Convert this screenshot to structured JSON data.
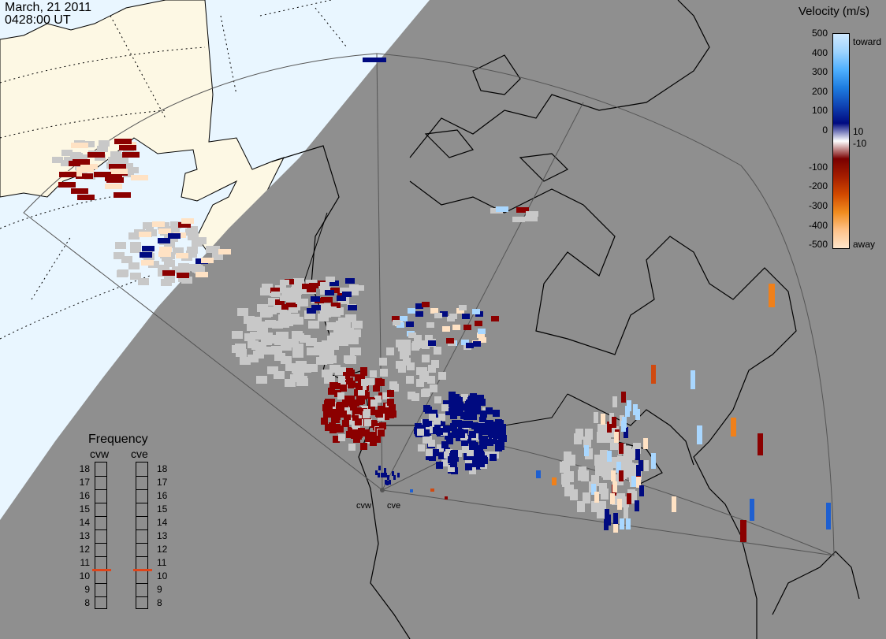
{
  "header": {
    "date": "March, 21 2011",
    "time": "0428:00 UT"
  },
  "colorbar": {
    "title": "Velocity (m/s)",
    "ticks": [
      "500",
      "400",
      "300",
      "200",
      "100",
      "10",
      "0",
      "-10",
      "-100",
      "-200",
      "-300",
      "-400",
      "-500"
    ],
    "toward_label": "toward",
    "away_label": "away",
    "colors": [
      "#cfe9ff",
      "#9ed4ff",
      "#4fb0ff",
      "#1e7de0",
      "#1045b5",
      "#000a80",
      "#ffffff",
      "#7a0000",
      "#a51e00",
      "#d24a00",
      "#f08c1e",
      "#ffc38a",
      "#ffe6cc"
    ]
  },
  "frequency": {
    "title": "Frequency",
    "radars": [
      "cvw",
      "cve"
    ],
    "scale": [
      "18",
      "17",
      "16",
      "15",
      "14",
      "13",
      "12",
      "11",
      "10",
      "9",
      "8"
    ],
    "cvw_mhz": 10.5,
    "cve_mhz": 10.5,
    "marker_color": "#e0451a"
  },
  "map": {
    "ocean_color": "#e9f6ff",
    "land_day_color": "#fdf8e4",
    "night_shade_color": "#8f8f8f",
    "coast_color": "#000000",
    "fov_color": "#555555",
    "ground_scatter_color": "#c8c8c8",
    "radar_labels": [
      "cvw",
      "cve"
    ]
  }
}
